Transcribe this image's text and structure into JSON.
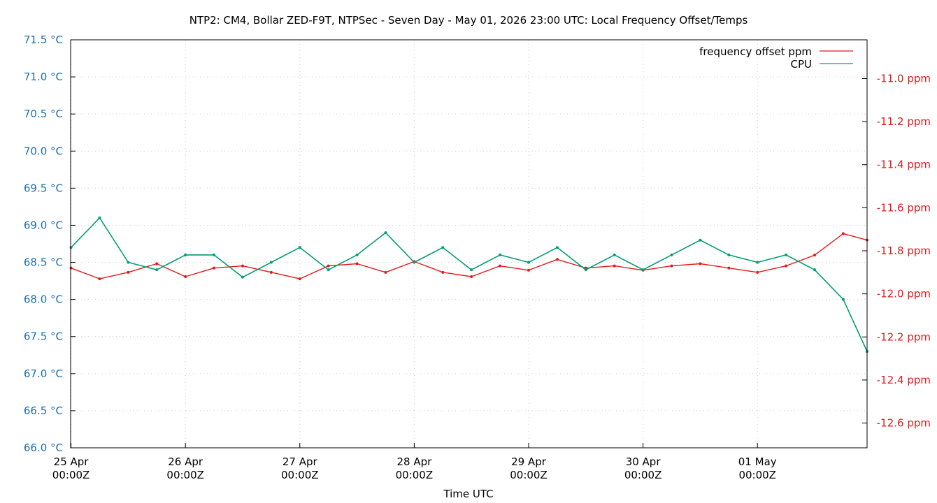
{
  "chart_data": {
    "type": "line",
    "title": "NTP2: CM4, Bollar ZED-F9T, NTPSec - Seven Day - May 01, 2026 23:00 UTC: Local Frequency Offset/Temps",
    "xlabel": "Time UTC",
    "ylabel": "",
    "y2label": "",
    "grid": true,
    "legend_position": "top-right",
    "x": {
      "range": [
        "2026-04-24T23:55:00Z",
        "2026-05-01T23:00:00Z"
      ],
      "ticks": [
        {
          "date": "2026-04-25T00:00:00Z",
          "line1": "25 Apr",
          "line2": "00:00Z"
        },
        {
          "date": "2026-04-26T00:00:00Z",
          "line1": "26 Apr",
          "line2": "00:00Z"
        },
        {
          "date": "2026-04-27T00:00:00Z",
          "line1": "27 Apr",
          "line2": "00:00Z"
        },
        {
          "date": "2026-04-28T00:00:00Z",
          "line1": "28 Apr",
          "line2": "00:00Z"
        },
        {
          "date": "2026-04-29T00:00:00Z",
          "line1": "29 Apr",
          "line2": "00:00Z"
        },
        {
          "date": "2026-04-30T00:00:00Z",
          "line1": "30 Apr",
          "line2": "00:00Z"
        },
        {
          "date": "2026-05-01T00:00:00Z",
          "line1": "01 May",
          "line2": "00:00Z"
        }
      ]
    },
    "y_left": {
      "range": [
        66.0,
        71.5
      ],
      "ticks": [
        {
          "value": 66.0,
          "label": "66.0 °C"
        },
        {
          "value": 66.5,
          "label": "66.5 °C"
        },
        {
          "value": 67.0,
          "label": "67.0 °C"
        },
        {
          "value": 67.5,
          "label": "67.5 °C"
        },
        {
          "value": 68.0,
          "label": "68.0 °C"
        },
        {
          "value": 68.5,
          "label": "68.5 °C"
        },
        {
          "value": 69.0,
          "label": "69.0 °C"
        },
        {
          "value": 69.5,
          "label": "69.5 °C"
        },
        {
          "value": 70.0,
          "label": "70.0 °C"
        },
        {
          "value": 70.5,
          "label": "70.5 °C"
        },
        {
          "value": 71.0,
          "label": "71.0 °C"
        },
        {
          "value": 71.5,
          "label": "71.5 °C"
        }
      ],
      "color": "#1a6db5"
    },
    "y_right": {
      "range": [
        -12.715,
        -10.82
      ],
      "ticks": [
        {
          "value": -11.0,
          "label": "-11.0 ppm"
        },
        {
          "value": -11.2,
          "label": "-11.2 ppm"
        },
        {
          "value": -11.4,
          "label": "-11.4 ppm"
        },
        {
          "value": -11.6,
          "label": "-11.6 ppm"
        },
        {
          "value": -11.8,
          "label": "-11.8 ppm"
        },
        {
          "value": -12.0,
          "label": "-12.0 ppm"
        },
        {
          "value": -12.2,
          "label": "-12.2 ppm"
        },
        {
          "value": -12.4,
          "label": "-12.4 ppm"
        },
        {
          "value": -12.6,
          "label": "-12.6 ppm"
        }
      ],
      "color": "#e41a1c"
    },
    "series": [
      {
        "name": "frequency offset ppm",
        "axis": "right",
        "color": "#e41a1c",
        "values": [
          {
            "x": "2026-04-25T00:00:00Z",
            "y": -11.88
          },
          {
            "x": "2026-04-25T06:00:00Z",
            "y": -11.93
          },
          {
            "x": "2026-04-25T12:00:00Z",
            "y": -11.9
          },
          {
            "x": "2026-04-25T18:00:00Z",
            "y": -11.86
          },
          {
            "x": "2026-04-26T00:00:00Z",
            "y": -11.92
          },
          {
            "x": "2026-04-26T06:00:00Z",
            "y": -11.88
          },
          {
            "x": "2026-04-26T12:00:00Z",
            "y": -11.87
          },
          {
            "x": "2026-04-26T18:00:00Z",
            "y": -11.9
          },
          {
            "x": "2026-04-27T00:00:00Z",
            "y": -11.93
          },
          {
            "x": "2026-04-27T06:00:00Z",
            "y": -11.87
          },
          {
            "x": "2026-04-27T12:00:00Z",
            "y": -11.86
          },
          {
            "x": "2026-04-27T18:00:00Z",
            "y": -11.9
          },
          {
            "x": "2026-04-28T00:00:00Z",
            "y": -11.85
          },
          {
            "x": "2026-04-28T06:00:00Z",
            "y": -11.9
          },
          {
            "x": "2026-04-28T12:00:00Z",
            "y": -11.92
          },
          {
            "x": "2026-04-28T18:00:00Z",
            "y": -11.87
          },
          {
            "x": "2026-04-29T00:00:00Z",
            "y": -11.89
          },
          {
            "x": "2026-04-29T06:00:00Z",
            "y": -11.84
          },
          {
            "x": "2026-04-29T12:00:00Z",
            "y": -11.88
          },
          {
            "x": "2026-04-29T18:00:00Z",
            "y": -11.87
          },
          {
            "x": "2026-04-30T00:00:00Z",
            "y": -11.89
          },
          {
            "x": "2026-04-30T06:00:00Z",
            "y": -11.87
          },
          {
            "x": "2026-04-30T12:00:00Z",
            "y": -11.86
          },
          {
            "x": "2026-04-30T18:00:00Z",
            "y": -11.88
          },
          {
            "x": "2026-05-01T00:00:00Z",
            "y": -11.9
          },
          {
            "x": "2026-05-01T06:00:00Z",
            "y": -11.87
          },
          {
            "x": "2026-05-01T12:00:00Z",
            "y": -11.82
          },
          {
            "x": "2026-05-01T18:00:00Z",
            "y": -11.72
          },
          {
            "x": "2026-05-01T23:00:00Z",
            "y": -11.75
          }
        ]
      },
      {
        "name": "CPU",
        "axis": "left",
        "color": "#009e73",
        "values": [
          {
            "x": "2026-04-25T00:00:00Z",
            "y": 68.7
          },
          {
            "x": "2026-04-25T06:00:00Z",
            "y": 69.1
          },
          {
            "x": "2026-04-25T12:00:00Z",
            "y": 68.5
          },
          {
            "x": "2026-04-25T18:00:00Z",
            "y": 68.4
          },
          {
            "x": "2026-04-26T00:00:00Z",
            "y": 68.6
          },
          {
            "x": "2026-04-26T06:00:00Z",
            "y": 68.6
          },
          {
            "x": "2026-04-26T12:00:00Z",
            "y": 68.3
          },
          {
            "x": "2026-04-26T18:00:00Z",
            "y": 68.5
          },
          {
            "x": "2026-04-27T00:00:00Z",
            "y": 68.7
          },
          {
            "x": "2026-04-27T06:00:00Z",
            "y": 68.4
          },
          {
            "x": "2026-04-27T12:00:00Z",
            "y": 68.6
          },
          {
            "x": "2026-04-27T18:00:00Z",
            "y": 68.9
          },
          {
            "x": "2026-04-28T00:00:00Z",
            "y": 68.5
          },
          {
            "x": "2026-04-28T06:00:00Z",
            "y": 68.7
          },
          {
            "x": "2026-04-28T12:00:00Z",
            "y": 68.4
          },
          {
            "x": "2026-04-28T18:00:00Z",
            "y": 68.6
          },
          {
            "x": "2026-04-29T00:00:00Z",
            "y": 68.5
          },
          {
            "x": "2026-04-29T06:00:00Z",
            "y": 68.7
          },
          {
            "x": "2026-04-29T12:00:00Z",
            "y": 68.4
          },
          {
            "x": "2026-04-29T18:00:00Z",
            "y": 68.6
          },
          {
            "x": "2026-04-30T00:00:00Z",
            "y": 68.4
          },
          {
            "x": "2026-04-30T06:00:00Z",
            "y": 68.6
          },
          {
            "x": "2026-04-30T12:00:00Z",
            "y": 68.8
          },
          {
            "x": "2026-04-30T18:00:00Z",
            "y": 68.6
          },
          {
            "x": "2026-05-01T00:00:00Z",
            "y": 68.5
          },
          {
            "x": "2026-05-01T06:00:00Z",
            "y": 68.6
          },
          {
            "x": "2026-05-01T12:00:00Z",
            "y": 68.4
          },
          {
            "x": "2026-05-01T18:00:00Z",
            "y": 68.0
          },
          {
            "x": "2026-05-01T23:00:00Z",
            "y": 67.3
          }
        ]
      }
    ]
  }
}
